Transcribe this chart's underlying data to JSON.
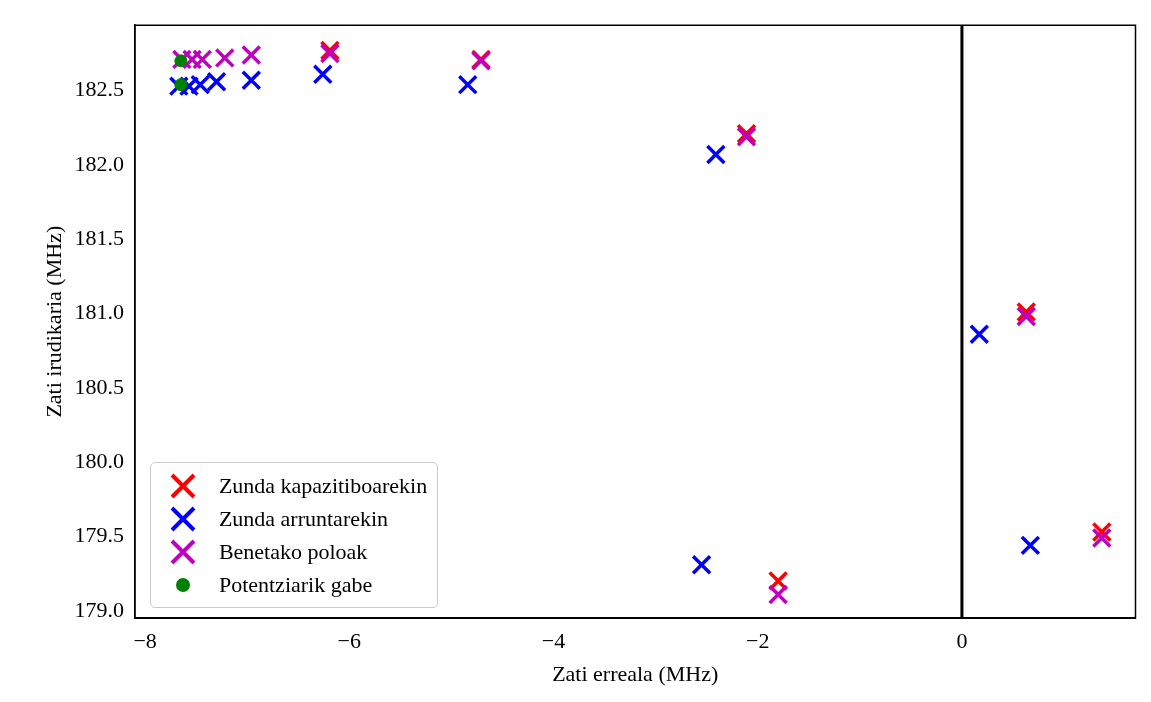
{
  "chart_data": {
    "type": "scatter",
    "xlabel": "Zati erreala (MHz)",
    "ylabel": "Zati irudikaria (MHz)",
    "xlim": [
      -8.1,
      1.7
    ],
    "ylim": [
      178.95,
      182.94
    ],
    "xticks": [
      -8,
      -6,
      -4,
      -2,
      0
    ],
    "yticks": [
      {
        "value": 179,
        "label": "179.0"
      },
      {
        "value": 179.5,
        "label": "179.5"
      },
      {
        "value": 180,
        "label": "180.0"
      },
      {
        "value": 180.5,
        "label": "180.5"
      },
      {
        "value": 181,
        "label": "181.0"
      },
      {
        "value": 181.5,
        "label": "181.5"
      },
      {
        "value": 182,
        "label": "182.0"
      },
      {
        "value": 182.5,
        "label": "182.5"
      }
    ],
    "grid": false,
    "legend": "bottom left",
    "ref_lines": [
      {
        "axis": "x",
        "value": 0,
        "color": "#000000"
      }
    ],
    "series": [
      {
        "name": "Zunda kapazitiboarekin",
        "color": "#ff0000",
        "marker": "cross",
        "x": [
          null,
          null,
          null,
          null,
          null,
          -6.19,
          -4.71,
          -2.11,
          0.63,
          1.37,
          -1.8
        ],
        "values": [
          null,
          null,
          null,
          null,
          null,
          182.77,
          182.71,
          182.21,
          181.01,
          179.53,
          179.2
        ]
      },
      {
        "name": "Zunda arruntarekin",
        "color": "#0000ff",
        "marker": "cross",
        "x": [
          -7.67,
          -7.57,
          -7.46,
          -7.3,
          -6.96,
          -6.26,
          -4.84,
          -2.41,
          0.17,
          0.67,
          -2.55
        ],
        "values": [
          182.53,
          182.53,
          182.54,
          182.56,
          182.57,
          182.61,
          182.54,
          182.07,
          180.86,
          179.44,
          179.31
        ]
      },
      {
        "name": "Benetako poloak",
        "color": "#bf00bf",
        "marker": "cross",
        "x": [
          -7.64,
          -7.54,
          -7.44,
          -7.22,
          -6.96,
          -6.19,
          -4.71,
          -2.11,
          0.63,
          1.37,
          -1.8
        ],
        "values": [
          182.71,
          182.71,
          182.71,
          182.72,
          182.74,
          182.75,
          182.7,
          182.19,
          180.98,
          179.49,
          179.11
        ]
      },
      {
        "name": "Potentziarik gabe",
        "color": "#008000",
        "marker": "circle",
        "x": [
          -7.65,
          -7.65
        ],
        "values": [
          182.7,
          182.54
        ]
      }
    ]
  }
}
